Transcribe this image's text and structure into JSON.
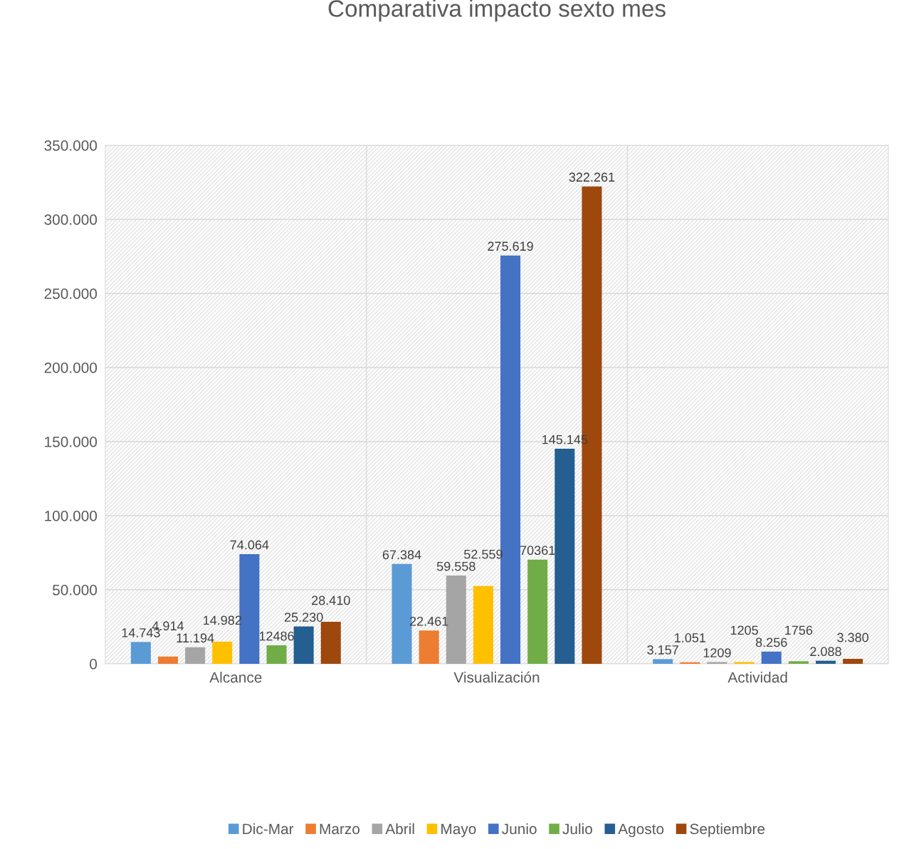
{
  "chart_data": {
    "type": "bar",
    "title": "Comparativa impacto sexto mes",
    "categories": [
      "Alcance",
      "Visualización",
      "Actividad"
    ],
    "series": [
      {
        "name": "Dic-Mar",
        "color": "#5b9bd5",
        "values": [
          14743,
          67384,
          3157
        ],
        "value_labels": [
          "14.743",
          "67.384",
          "3.157"
        ]
      },
      {
        "name": "Marzo",
        "color": "#ed7d31",
        "values": [
          4914,
          22461,
          1051
        ],
        "value_labels": [
          "4.914",
          "22.461",
          "1.051"
        ]
      },
      {
        "name": "Abril",
        "color": "#a5a5a5",
        "values": [
          11194,
          59558,
          1209
        ],
        "value_labels": [
          "11.194",
          "59.558",
          "1209"
        ]
      },
      {
        "name": "Mayo",
        "color": "#ffc000",
        "values": [
          14982,
          52559,
          1205
        ],
        "value_labels": [
          "14.982",
          "52.559",
          "1205"
        ]
      },
      {
        "name": "Junio",
        "color": "#4472c4",
        "values": [
          74064,
          275619,
          8256
        ],
        "value_labels": [
          "74.064",
          "275.619",
          "8.256"
        ]
      },
      {
        "name": "Julio",
        "color": "#70ad47",
        "values": [
          12486,
          70361,
          1756
        ],
        "value_labels": [
          "12486",
          "70361",
          "1756"
        ]
      },
      {
        "name": "Agosto",
        "color": "#255e91",
        "values": [
          25230,
          145145,
          2088
        ],
        "value_labels": [
          "25.230",
          "145.145",
          "2.088"
        ]
      },
      {
        "name": "Septiembre",
        "color": "#9e480e",
        "values": [
          28410,
          322261,
          3380
        ],
        "value_labels": [
          "28.410",
          "322.261",
          "3.380"
        ]
      }
    ],
    "ylim": [
      0,
      350000
    ],
    "yticks": [
      {
        "value": 0,
        "label": "0"
      },
      {
        "value": 50000,
        "label": "50.000"
      },
      {
        "value": 100000,
        "label": "100.000"
      },
      {
        "value": 150000,
        "label": "150.000"
      },
      {
        "value": 200000,
        "label": "200.000"
      },
      {
        "value": 250000,
        "label": "250.000"
      },
      {
        "value": 300000,
        "label": "300.000"
      },
      {
        "value": 350000,
        "label": "350.000"
      }
    ],
    "grid": true,
    "legend": "bottom"
  }
}
